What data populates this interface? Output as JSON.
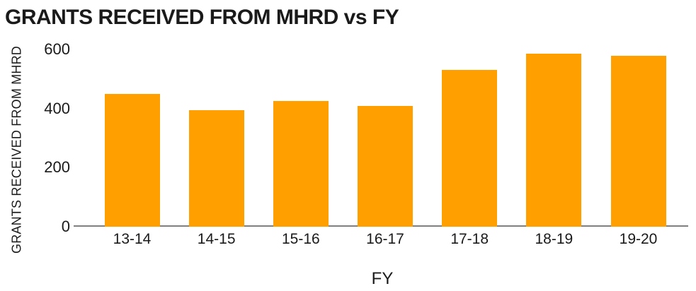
{
  "chart_data": {
    "type": "bar",
    "title": "GRANTS RECEIVED FROM MHRD vs FY",
    "xlabel": "FY",
    "ylabel": "GRANTS RECEIVED FROM MHRD",
    "categories": [
      "13-14",
      "14-15",
      "15-16",
      "16-17",
      "17-18",
      "18-19",
      "19-20"
    ],
    "values": [
      450,
      395,
      425,
      410,
      530,
      585,
      580
    ],
    "yticks": [
      0,
      200,
      400,
      600
    ],
    "ylim": [
      0,
      600
    ],
    "grid": false,
    "legend": false,
    "bar_color": "#FFA000",
    "axis_color": "#7F7F7F",
    "text_color": "#1A1A1A",
    "background_color": "#FFFFFF"
  }
}
